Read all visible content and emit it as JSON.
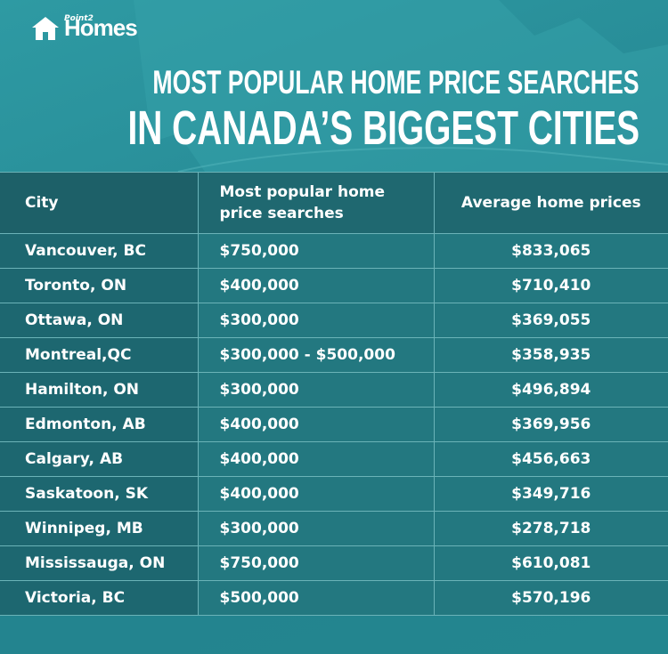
{
  "header": {
    "logo_small": "Point2",
    "logo": "Homes",
    "title_line1": "MOST POPULAR HOME PRICE SEARCHES",
    "title_line2": "IN CANADA’S BIGGEST CITIES"
  },
  "table": {
    "columns": [
      "City",
      "Most popular home price searches",
      "Average home prices"
    ],
    "rows": [
      [
        "Vancouver, BC",
        "$750,000",
        "$833,065"
      ],
      [
        "Toronto, ON",
        "$400,000",
        "$710,410"
      ],
      [
        "Ottawa, ON",
        "$300,000",
        "$369,055"
      ],
      [
        "Montreal,QC",
        "$300,000 - $500,000",
        "$358,935"
      ],
      [
        "Hamilton, ON",
        "$300,000",
        "$496,894"
      ],
      [
        "Edmonton, AB",
        "$400,000",
        "$369,956"
      ],
      [
        "Calgary, AB",
        "$400,000",
        "$456,663"
      ],
      [
        "Saskatoon, SK",
        "$400,000",
        "$349,716"
      ],
      [
        "Winnipeg, MB",
        "$300,000",
        "$278,718"
      ],
      [
        "Mississauga, ON",
        "$750,000",
        "$610,081"
      ],
      [
        "Victoria, BC",
        "$500,000",
        "$570,196"
      ]
    ]
  }
}
